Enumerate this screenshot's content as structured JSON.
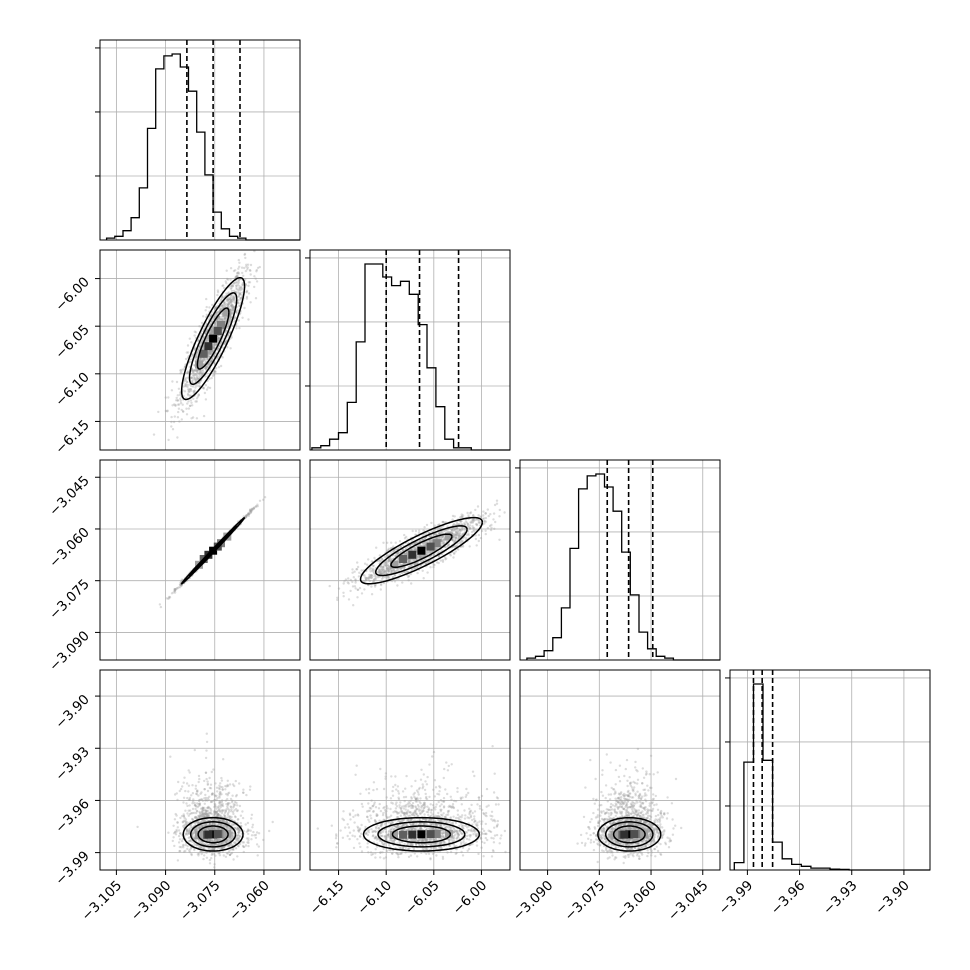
{
  "colors": {
    "line": "#000000",
    "grid": "#b0b0b0",
    "scatter": "#9a9a9a",
    "density_dark": "#000000",
    "density_light": "#d9d9d9"
  },
  "chart_data": {
    "type": "corner",
    "grid": true,
    "parameters": [
      {
        "range": [
          -3.11,
          -3.049
        ],
        "ticks": [
          -3.105,
          -3.09,
          -3.075,
          -3.06
        ],
        "tick_labels": [
          "−3.105",
          "−3.090",
          "−3.075",
          "−3.060"
        ],
        "quantiles": [
          -3.0835,
          -3.0755,
          -3.0673
        ],
        "hist": {
          "edges_start": -3.108,
          "bin_width": 0.0025,
          "counts": [
            1,
            2,
            5,
            12,
            28,
            60,
            92,
            99,
            100,
            93,
            80,
            58,
            35,
            15,
            6,
            2,
            1
          ]
        },
        "mean": -3.0755,
        "std": 0.0048
      },
      {
        "range": [
          -6.18,
          -5.97
        ],
        "ticks": [
          -6.15,
          -6.1,
          -6.05,
          -6.0
        ],
        "tick_labels": [
          "−6.15",
          "−6.10",
          "−6.05",
          "−6.00"
        ],
        "quantiles": [
          -6.1,
          -6.065,
          -6.024
        ],
        "hist": {
          "edges_start": -6.178,
          "bin_width": 0.0093,
          "counts": [
            1,
            2,
            5,
            8,
            22,
            50,
            86,
            86,
            80,
            76,
            78,
            72,
            58,
            38,
            20,
            5,
            1,
            1
          ]
        },
        "mean": -6.063,
        "std": 0.032
      },
      {
        "range": [
          -3.098,
          -3.04
        ],
        "ticks": [
          -3.09,
          -3.075,
          -3.06,
          -3.045
        ],
        "tick_labels": [
          "−3.090",
          "−3.075",
          "−3.060",
          "−3.045"
        ],
        "quantiles": [
          -3.0727,
          -3.0665,
          -3.0595
        ],
        "hist": {
          "edges_start": -3.096,
          "bin_width": 0.0025,
          "counts": [
            1,
            2,
            5,
            12,
            28,
            60,
            92,
            99,
            100,
            93,
            80,
            58,
            35,
            15,
            6,
            2,
            1
          ]
        },
        "mean": -3.0663,
        "std": 0.0048
      },
      {
        "range": [
          -4.0,
          -3.885
        ],
        "ticks": [
          -3.99,
          -3.96,
          -3.93,
          -3.9
        ],
        "tick_labels": [
          "−3.99",
          "−3.96",
          "−3.93",
          "−3.90"
        ],
        "quantiles": [
          -3.9865,
          -3.9815,
          -3.9755
        ],
        "hist": {
          "edges_start": -3.9975,
          "bin_width": 0.0055,
          "counts": [
            4,
            58,
            100,
            59,
            15,
            6,
            3,
            2,
            1,
            1,
            0.5,
            0.3,
            0,
            0,
            0
          ]
        },
        "mean": -3.9795,
        "std": 0.008
      }
    ],
    "correlations": {
      "1-0": 0.86,
      "2-0": 0.998,
      "2-1": 0.86,
      "3-0": 0.05,
      "3-1": 0.05,
      "3-2": 0.05
    }
  }
}
